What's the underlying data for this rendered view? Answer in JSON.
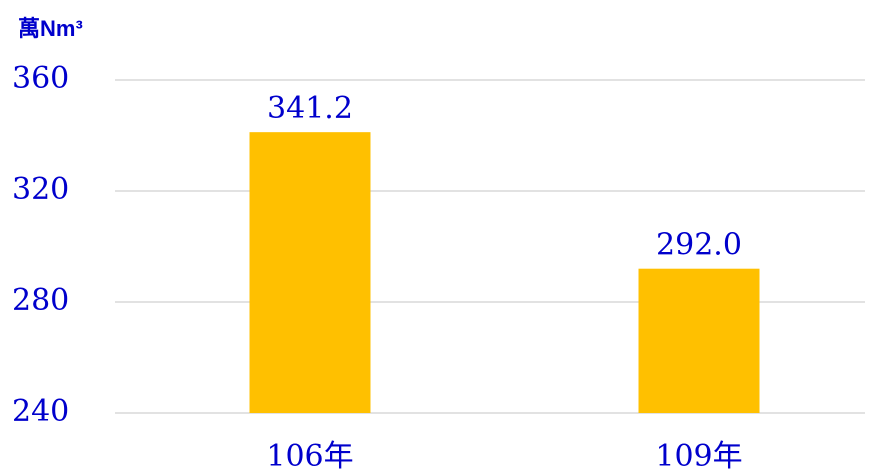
{
  "chart_data": {
    "type": "bar",
    "y_label": "萬Nm³",
    "categories": [
      "106年",
      "109年"
    ],
    "values": [
      341.2,
      292.0
    ],
    "value_labels": [
      "341.2",
      "292.0"
    ],
    "color": "#ffc000",
    "ylim": [
      240,
      360
    ],
    "yticks": [
      240,
      280,
      320,
      360
    ],
    "grid": true
  }
}
